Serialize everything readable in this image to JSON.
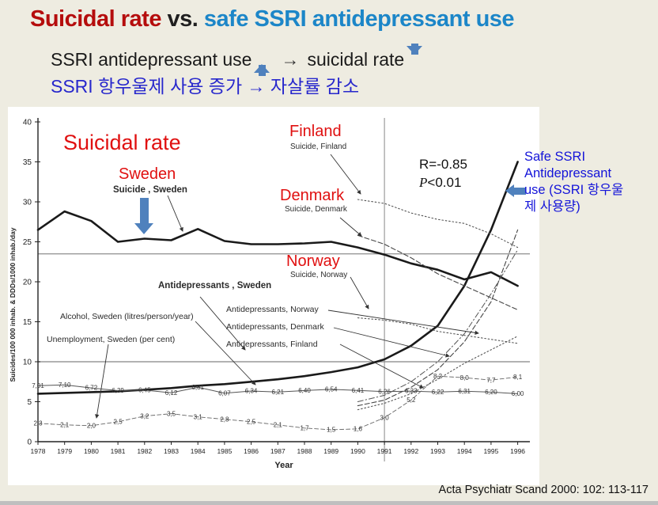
{
  "slide": {
    "title_red": "Suicidal rate",
    "title_mid": " vs. ",
    "title_blue": "safe SSRI antidepressant use",
    "subtitle_en_pre": "SSRI antidepressant use",
    "subtitle_en_arrow": "→",
    "subtitle_en_post": "suicidal rate",
    "subtitle_ko": "SSRI 항우울제 사용 증가 → 자살률 감소",
    "side_note": "Safe SSRI Antidepressant use (SSRI 항우울제 사용량)",
    "citation": "Acta Psychiatr Scand 2000: 102: 113-117"
  },
  "overlay": {
    "suicidal_rate": "Suicidal rate",
    "sweden": "Sweden",
    "suicide_sweden": "Suicide , Sweden",
    "finland": "Finland",
    "suicide_finland": "Suicide, Finland",
    "denmark": "Denmark",
    "suicide_denmark": "Suicide, Denmark",
    "norway": "Norway",
    "suicide_norway": "Suicide, Norway",
    "antidepressants_sweden": "Antidepressants , Sweden",
    "antidepressants_norway": "Antidepressants, Norway",
    "antidepressants_denmark": "Antidepressants, Denmark",
    "antidepressants_finland": "Antidepressants, Finland",
    "alcohol": "Alcohol, Sweden (litres/person/year)",
    "unemployment": "Unemployment, Sweden (per cent)",
    "stat_r": "R=-0.85",
    "stat_p_symbol": "P",
    "stat_p_rest": "<0.01"
  },
  "colors": {
    "background": "#eeece1",
    "title_red": "#b50d0d",
    "title_blue": "#1c86c8",
    "chart_label_red": "#e01010",
    "subtitle_blue": "#2727cc",
    "side_note_blue": "#1414d9",
    "accent_arrow_blue": "#4f81bd",
    "line_black": "#1a1a1a"
  },
  "chart_data": {
    "type": "line",
    "xlabel": "Year",
    "ylabel": "Suicides/100 000 inhab. & DDDs/1000 inhab./day",
    "xlim": [
      1978,
      1996
    ],
    "ylim": [
      0,
      40
    ],
    "yticks": [
      0,
      5,
      10,
      15,
      20,
      25,
      30,
      35,
      40
    ],
    "xticks": [
      1978,
      1979,
      1980,
      1981,
      1982,
      1983,
      1984,
      1985,
      1986,
      1987,
      1988,
      1989,
      1990,
      1991,
      1992,
      1993,
      1994,
      1995,
      1996
    ],
    "gridlines_y": [
      23.5,
      10
    ],
    "ref_line_x": 1991,
    "legend_position": "labels-on-chart",
    "grid": "partial",
    "stats_annotation": "R=-0.85, P<0.01",
    "series": [
      {
        "id": "suicide_sweden",
        "name": "Suicide, Sweden",
        "x_start": 1978,
        "style": "thick-solid",
        "values": [
          26.5,
          28.8,
          27.6,
          25.0,
          25.4,
          25.2,
          26.6,
          25.1,
          24.7,
          24.7,
          24.8,
          25.0,
          24.3,
          23.4,
          22.3,
          21.5,
          20.3,
          21.2,
          19.5
        ]
      },
      {
        "id": "antidepressants_sweden",
        "name": "Antidepressants, Sweden",
        "x_start": 1978,
        "style": "thick-solid",
        "values": [
          6.0,
          6.1,
          6.2,
          6.3,
          6.5,
          6.7,
          7.0,
          7.2,
          7.5,
          7.8,
          8.2,
          8.7,
          9.3,
          10.3,
          12.0,
          14.5,
          19.5,
          26.5,
          35.0
        ]
      },
      {
        "id": "alcohol_sweden",
        "name": "Alcohol, Sweden (litres/person/year)",
        "x_start": 1978,
        "style": "thin-solid",
        "values": [
          7.01,
          7.1,
          6.72,
          6.39,
          6.45,
          6.12,
          6.81,
          6.07,
          6.34,
          6.21,
          6.4,
          6.54,
          6.41,
          6.26,
          6.33,
          6.22,
          6.31,
          6.2,
          6.0
        ],
        "point_labels": [
          "7,01",
          "7,10",
          "6,72",
          "6,39",
          "6,45",
          "6,12",
          "6,81",
          "6,07",
          "6,34",
          "6,21",
          "6,40",
          "6,54",
          "6,41",
          "6,26",
          "6,33",
          "6,22",
          "6,31",
          "6,20",
          "6,00"
        ]
      },
      {
        "id": "unemployment_sweden",
        "name": "Unemployment, Sweden (per cent)",
        "x_start": 1978,
        "style": "thin-dashed",
        "values": [
          2.3,
          2.1,
          2.0,
          2.5,
          3.2,
          3.5,
          3.1,
          2.8,
          2.5,
          2.1,
          1.7,
          1.5,
          1.6,
          3.0,
          5.2,
          8.2,
          8.0,
          7.7,
          8.1
        ],
        "point_labels": [
          "2,3",
          "2,1",
          "2,0",
          "2,5",
          "3,2",
          "3,5",
          "3,1",
          "2,8",
          "2,5",
          "2,1",
          "1,7",
          "1,5",
          "1,6",
          "3,0",
          "5,2",
          "8,2",
          "8,0",
          "7,7",
          "8,1"
        ]
      },
      {
        "id": "suicide_finland",
        "name": "Suicide, Finland",
        "x_start": 1990,
        "style": "dotted",
        "values": [
          30.3,
          29.8,
          28.6,
          27.8,
          27.3,
          26.0,
          24.3
        ]
      },
      {
        "id": "suicide_denmark",
        "name": "Suicide, Denmark",
        "x_start": 1990,
        "style": "dashed",
        "values": [
          25.8,
          24.7,
          23.0,
          21.0,
          19.5,
          18.0,
          16.5
        ]
      },
      {
        "id": "suicide_norway",
        "name": "Suicide, Norway",
        "x_start": 1990,
        "style": "dotted",
        "values": [
          15.5,
          15.2,
          14.7,
          13.8,
          13.3,
          12.8,
          12.3
        ]
      },
      {
        "id": "antidepressants_norway",
        "name": "Antidepressants, Norway",
        "x_start": 1990,
        "style": "dash-dot",
        "values": [
          5.0,
          5.8,
          7.5,
          10.0,
          13.5,
          18.5,
          24.0
        ]
      },
      {
        "id": "antidepressants_denmark",
        "name": "Antidepressants, Denmark",
        "x_start": 1990,
        "style": "dashed",
        "values": [
          4.5,
          5.2,
          6.8,
          9.0,
          12.5,
          17.5,
          26.5
        ]
      },
      {
        "id": "antidepressants_finland",
        "name": "Antidepressants, Finland",
        "x_start": 1990,
        "style": "dotted",
        "values": [
          4.0,
          4.8,
          6.0,
          7.8,
          9.8,
          11.5,
          13.2
        ]
      }
    ]
  }
}
